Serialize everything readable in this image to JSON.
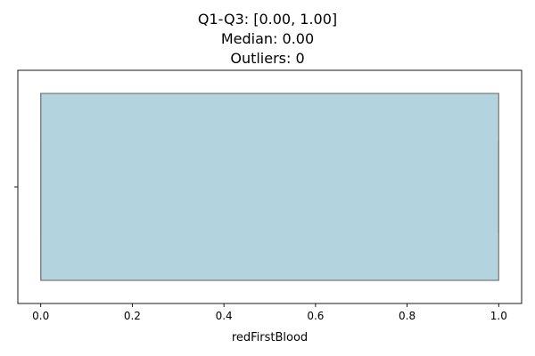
{
  "chart_data": {
    "type": "box",
    "title_lines": [
      "Q1-Q3: [0.00, 1.00]",
      "Median: 0.00",
      "Outliers: 0"
    ],
    "xlabel": "redFirstBlood",
    "ylabel": "",
    "xlim": [
      -0.05,
      1.05
    ],
    "xticks": [
      0.0,
      0.2,
      0.4,
      0.6,
      0.8,
      1.0
    ],
    "xtick_labels": [
      "0.0",
      "0.2",
      "0.4",
      "0.6",
      "0.8",
      "1.0"
    ],
    "box": {
      "min": 0.0,
      "q1": 0.0,
      "median": 0.0,
      "q3": 1.0,
      "max": 1.0,
      "outliers": []
    },
    "box_color": "#b3d4df",
    "edge_color": "#808080",
    "grid": false,
    "orientation": "horizontal"
  }
}
